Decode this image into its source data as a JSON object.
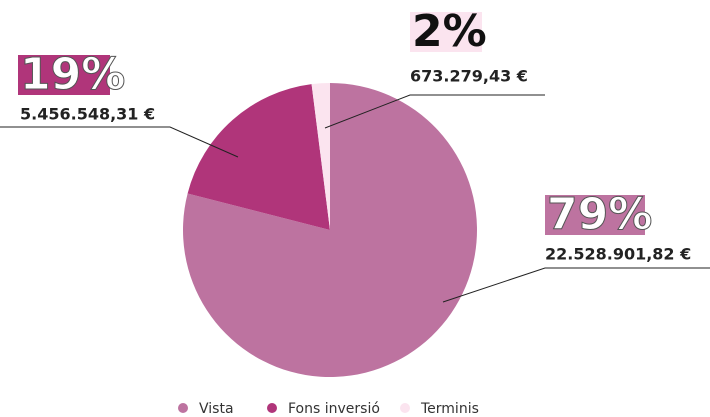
{
  "chart_data": {
    "type": "pie",
    "categories": [
      "Vista",
      "Fons inversió",
      "Terminis"
    ],
    "values": [
      79,
      19,
      2
    ],
    "value_labels": [
      "79%",
      "19%",
      "2%"
    ],
    "amounts": [
      "22.528.901,82 €",
      "5.456.548,31 €",
      "673.279,43 €"
    ],
    "colors": [
      "#bd73a0",
      "#b0357a",
      "#fbe4ef"
    ],
    "legend": "bottom"
  }
}
